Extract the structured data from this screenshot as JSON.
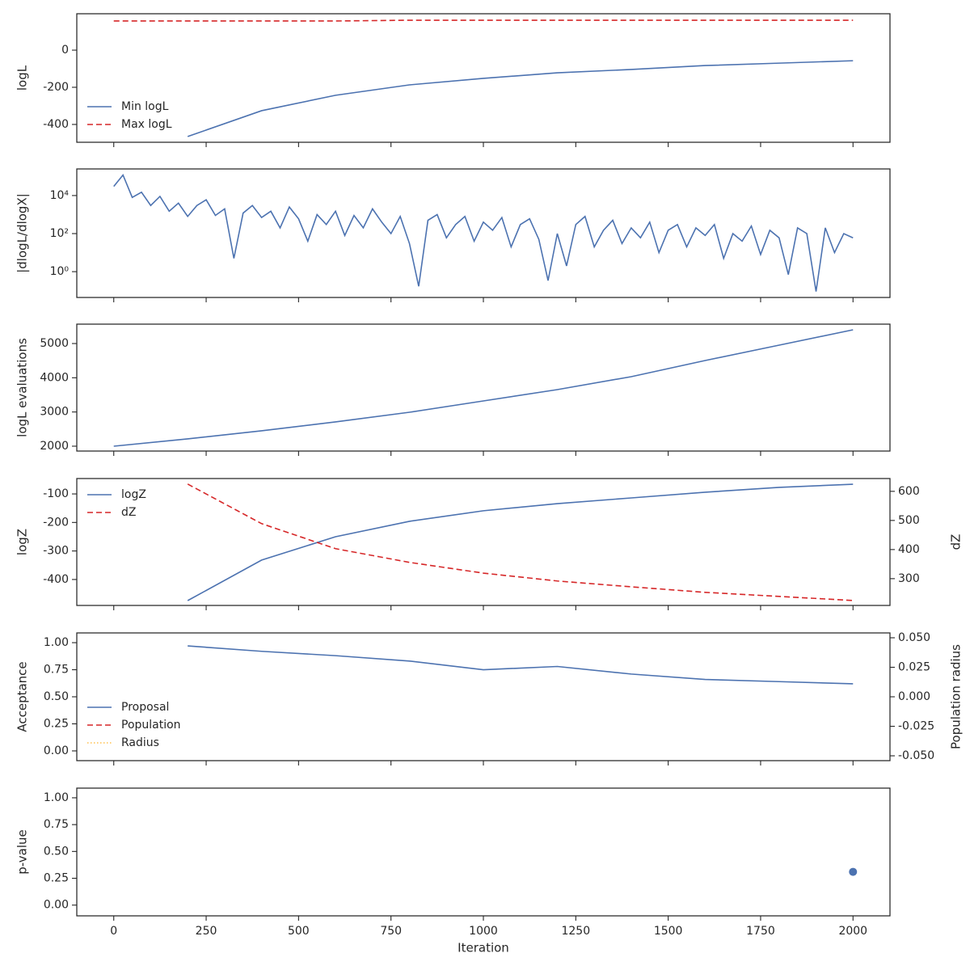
{
  "chart_data": [
    {
      "type": "line",
      "ylabel": "logL",
      "legend": "lower left",
      "x": [
        0,
        200,
        400,
        600,
        800,
        1000,
        1200,
        1400,
        1600,
        1800,
        2000
      ],
      "series": [
        {
          "name": "Min logL",
          "color": "#4c72b0",
          "linestyle": "solid",
          "values": [
            null,
            -465,
            -326,
            -243,
            -187,
            -152,
            -122,
            -104,
            -83,
            -70,
            -57
          ]
        },
        {
          "name": "Max logL",
          "color": "#d62728",
          "linestyle": "dashed",
          "values": [
            157,
            157,
            157,
            157,
            161,
            161,
            161,
            161,
            161,
            161,
            161
          ]
        }
      ],
      "xlim": [
        -100,
        2100
      ],
      "xticks": [
        0,
        250,
        500,
        750,
        1000,
        1250,
        1500,
        1750,
        2000
      ],
      "ylim": [
        -496,
        196
      ],
      "yticks": [
        -400,
        -200,
        0
      ]
    },
    {
      "type": "line",
      "ylabel": "|dlogL/dlogX|",
      "logy": true,
      "x": [
        0,
        25,
        50,
        75,
        100,
        125,
        150,
        175,
        200,
        225,
        250,
        275,
        300,
        325,
        350,
        375,
        400,
        425,
        450,
        475,
        500,
        525,
        550,
        575,
        600,
        625,
        650,
        675,
        700,
        725,
        750,
        775,
        800,
        825,
        850,
        875,
        900,
        925,
        950,
        975,
        1000,
        1025,
        1050,
        1075,
        1100,
        1125,
        1150,
        1175,
        1200,
        1225,
        1250,
        1275,
        1300,
        1325,
        1350,
        1375,
        1400,
        1425,
        1450,
        1475,
        1500,
        1525,
        1550,
        1575,
        1600,
        1625,
        1650,
        1675,
        1700,
        1725,
        1750,
        1775,
        1800,
        1825,
        1850,
        1875,
        1900,
        1925,
        1950,
        1975,
        2000
      ],
      "series": [
        {
          "name": "dlogL",
          "color": "#4c72b0",
          "linestyle": "solid",
          "values": [
            30000,
            120000,
            8000,
            15000,
            3000,
            9000,
            1500,
            4000,
            800,
            3000,
            6000,
            900,
            2000,
            5,
            1200,
            3000,
            700,
            1500,
            200,
            2500,
            600,
            40,
            1000,
            300,
            1500,
            80,
            900,
            200,
            2000,
            400,
            100,
            800,
            30,
            0.17,
            500,
            1000,
            60,
            300,
            800,
            40,
            400,
            150,
            700,
            20,
            300,
            600,
            50,
            0.34,
            100,
            2,
            300,
            800,
            20,
            150,
            500,
            30,
            200,
            60,
            400,
            10,
            150,
            300,
            20,
            200,
            80,
            300,
            5,
            100,
            40,
            250,
            8,
            150,
            60,
            0.7,
            200,
            100,
            0.09,
            200,
            10,
            100,
            60
          ]
        }
      ],
      "xlim": [
        -100,
        2100
      ],
      "xticks": [
        0,
        250,
        500,
        750,
        1000,
        1250,
        1500,
        1750,
        2000
      ],
      "ylim": [
        0.044,
        250000
      ],
      "yticks": [
        {
          "value": 1,
          "label": "10⁰"
        },
        {
          "value": 100,
          "label": "10²"
        },
        {
          "value": 10000,
          "label": "10⁴"
        }
      ]
    },
    {
      "type": "line",
      "ylabel": "logL evaluations",
      "x": [
        0,
        200,
        400,
        600,
        800,
        1000,
        1200,
        1400,
        1600,
        1800,
        2000
      ],
      "series": [
        {
          "name": "evaluations",
          "color": "#4c72b0",
          "linestyle": "solid",
          "values": [
            2000,
            2213,
            2449,
            2709,
            2992,
            3323,
            3654,
            4032,
            4504,
            4953,
            5402
          ]
        }
      ],
      "xlim": [
        -100,
        2100
      ],
      "xticks": [
        0,
        250,
        500,
        750,
        1000,
        1250,
        1500,
        1750,
        2000
      ],
      "ylim": [
        1858,
        5567
      ],
      "yticks": [
        2000,
        3000,
        4000,
        5000
      ]
    },
    {
      "type": "line",
      "ylabel": "logZ",
      "y2label": "dZ",
      "legend": "upper left",
      "x": [
        200,
        400,
        600,
        800,
        1000,
        1200,
        1400,
        1600,
        1800,
        2000
      ],
      "series": [
        {
          "name": "logZ",
          "color": "#4c72b0",
          "linestyle": "solid",
          "values": [
            -474,
            -332,
            -250,
            -196,
            -159,
            -134,
            -114,
            -94,
            -77,
            -66
          ]
        },
        {
          "name": "dZ",
          "color": "#d62728",
          "linestyle": "dashed",
          "axis": "y2",
          "values": [
            625,
            489,
            403,
            356,
            319,
            292,
            272,
            253,
            239,
            225
          ]
        }
      ],
      "xlim": [
        -100,
        2100
      ],
      "xticks": [
        0,
        250,
        500,
        750,
        1000,
        1250,
        1500,
        1750,
        2000
      ],
      "ylim": [
        -491,
        -46
      ],
      "yticks": [
        -400,
        -300,
        -200,
        -100
      ],
      "y2lim": [
        208,
        644
      ],
      "y2ticks": [
        300,
        400,
        500,
        600
      ]
    },
    {
      "type": "line",
      "ylabel": "Acceptance",
      "y2label": "Population radius",
      "legend": "lower left",
      "x": [
        200,
        400,
        600,
        800,
        1000,
        1200,
        1400,
        1600,
        1800,
        2000
      ],
      "series": [
        {
          "name": "Proposal",
          "color": "#4c72b0",
          "linestyle": "solid",
          "values": [
            0.97,
            0.92,
            0.88,
            0.83,
            0.75,
            0.78,
            0.71,
            0.66,
            0.64,
            0.62
          ]
        },
        {
          "name": "Population",
          "color": "#d62728",
          "linestyle": "dashed",
          "values": [
            null,
            null,
            null,
            null,
            null,
            null,
            null,
            null,
            null,
            null
          ]
        },
        {
          "name": "Radius",
          "color": "#ffc04d",
          "linestyle": "dotted",
          "axis": "y2",
          "values": [
            null,
            null,
            null,
            null,
            null,
            null,
            null,
            null,
            null,
            null
          ]
        }
      ],
      "xlim": [
        -100,
        2100
      ],
      "xticks": [
        0,
        250,
        500,
        750,
        1000,
        1250,
        1500,
        1750,
        2000
      ],
      "ylim": [
        -0.09,
        1.09
      ],
      "yticks": [
        {
          "value": 0,
          "label": "0.00"
        },
        {
          "value": 0.25,
          "label": "0.25"
        },
        {
          "value": 0.5,
          "label": "0.50"
        },
        {
          "value": 0.75,
          "label": "0.75"
        },
        {
          "value": 1,
          "label": "1.00"
        }
      ],
      "y2lim": [
        -0.0541,
        0.0541
      ],
      "y2ticks": [
        {
          "value": -0.05,
          "label": "-0.050"
        },
        {
          "value": -0.025,
          "label": "-0.025"
        },
        {
          "value": 0,
          "label": "0.000"
        },
        {
          "value": 0.025,
          "label": "0.025"
        },
        {
          "value": 0.05,
          "label": "0.050"
        }
      ]
    },
    {
      "type": "scatter",
      "ylabel": "p-value",
      "xlabel": "Iteration",
      "x_tick_labels": true,
      "x": [
        2000
      ],
      "values": [
        0.31
      ],
      "color": "#4c72b0",
      "xlim": [
        -100,
        2100
      ],
      "xticks": [
        0,
        250,
        500,
        750,
        1000,
        1250,
        1500,
        1750,
        2000
      ],
      "ylim": [
        -0.1,
        1.09
      ],
      "yticks": [
        {
          "value": 0,
          "label": "0.00"
        },
        {
          "value": 0.25,
          "label": "0.25"
        },
        {
          "value": 0.5,
          "label": "0.50"
        },
        {
          "value": 0.75,
          "label": "0.75"
        },
        {
          "value": 1,
          "label": "1.00"
        }
      ]
    }
  ]
}
